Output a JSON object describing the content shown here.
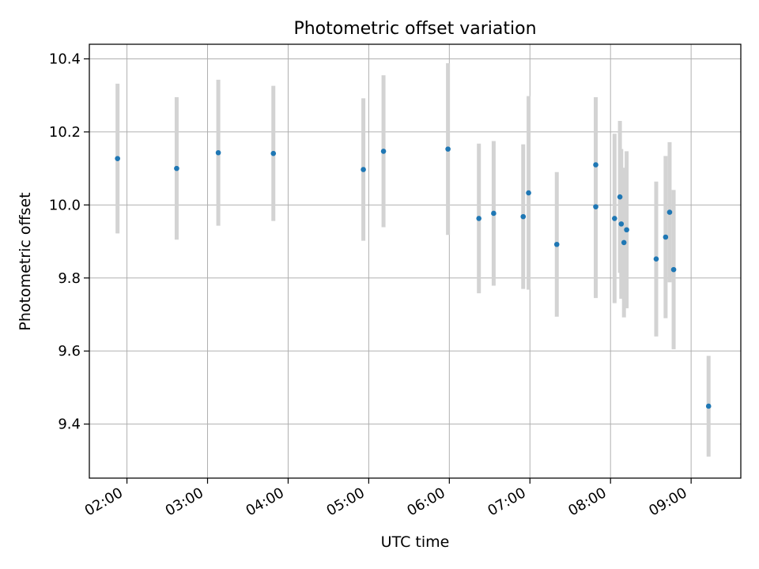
{
  "chart_data": {
    "type": "scatter",
    "title": "Photometric offset variation",
    "xlabel": "UTC time",
    "ylabel": "Photometric offset",
    "xlim": [
      "01:32",
      "09:37"
    ],
    "ylim": [
      9.252,
      10.44
    ],
    "x_ticks": [
      "02:00",
      "03:00",
      "04:00",
      "05:00",
      "06:00",
      "07:00",
      "08:00",
      "09:00"
    ],
    "y_ticks": [
      9.4,
      9.6,
      9.8,
      10.0,
      10.2,
      10.4
    ],
    "grid": true,
    "legend": "none",
    "marker_color": "#1f77b4",
    "errorbar_color": "#d3d3d3",
    "points": [
      {
        "x": "01:53",
        "y": 10.127,
        "err": 0.205
      },
      {
        "x": "02:37",
        "y": 10.1,
        "err": 0.195
      },
      {
        "x": "03:08",
        "y": 10.143,
        "err": 0.2
      },
      {
        "x": "03:49",
        "y": 10.141,
        "err": 0.185
      },
      {
        "x": "04:56",
        "y": 10.097,
        "err": 0.195
      },
      {
        "x": "05:11",
        "y": 10.147,
        "err": 0.208
      },
      {
        "x": "05:59",
        "y": 10.153,
        "err": 0.235
      },
      {
        "x": "06:22",
        "y": 9.963,
        "err": 0.205
      },
      {
        "x": "06:33",
        "y": 9.977,
        "err": 0.198
      },
      {
        "x": "06:55",
        "y": 9.968,
        "err": 0.198
      },
      {
        "x": "06:59",
        "y": 10.033,
        "err": 0.265
      },
      {
        "x": "07:20",
        "y": 9.892,
        "err": 0.198
      },
      {
        "x": "07:49",
        "y": 10.11,
        "err": 0.185
      },
      {
        "x": "07:49",
        "y": 9.995,
        "err": 0.25
      },
      {
        "x": "08:03",
        "y": 9.963,
        "err": 0.232
      },
      {
        "x": "08:07",
        "y": 10.022,
        "err": 0.208
      },
      {
        "x": "08:08",
        "y": 9.948,
        "err": 0.205
      },
      {
        "x": "08:10",
        "y": 9.897,
        "err": 0.205
      },
      {
        "x": "08:12",
        "y": 9.932,
        "err": 0.215
      },
      {
        "x": "08:34",
        "y": 9.852,
        "err": 0.212
      },
      {
        "x": "08:41",
        "y": 9.912,
        "err": 0.222
      },
      {
        "x": "08:44",
        "y": 9.98,
        "err": 0.192
      },
      {
        "x": "08:47",
        "y": 9.823,
        "err": 0.218
      },
      {
        "x": "09:13",
        "y": 9.449,
        "err": 0.138
      }
    ]
  }
}
